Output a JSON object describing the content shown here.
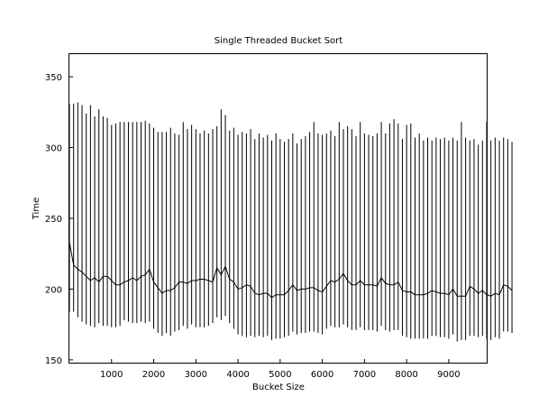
{
  "chart_data": {
    "type": "line",
    "title": "Single Threaded Bucket Sort",
    "xlabel": "Bucket Size",
    "ylabel": "Time",
    "xlim": [
      0,
      9900
    ],
    "ylim": [
      148,
      366
    ],
    "xticks": [
      1000,
      2000,
      3000,
      4000,
      5000,
      6000,
      7000,
      8000,
      9000
    ],
    "yticks": [
      150,
      200,
      250,
      300,
      350
    ],
    "grid": false,
    "legend": "none",
    "color": "#000000",
    "error_bars": true,
    "x_start": 0,
    "x_step": 100,
    "mean": [
      233,
      217,
      214,
      212,
      209,
      206,
      208,
      205,
      209,
      209,
      206,
      203,
      203,
      205,
      206,
      208,
      206,
      209,
      210,
      214,
      205,
      201,
      197,
      199,
      199,
      201,
      205,
      205,
      204,
      206,
      206,
      207,
      207,
      206,
      205,
      215,
      210,
      216,
      207,
      205,
      200,
      201,
      203,
      202,
      197,
      196,
      197,
      197,
      194,
      196,
      196,
      196,
      199,
      203,
      199,
      200,
      200,
      201,
      201,
      199,
      198,
      202,
      206,
      205,
      207,
      211,
      206,
      203,
      203,
      206,
      203,
      203,
      203,
      202,
      208,
      204,
      203,
      203,
      205,
      199,
      198,
      198,
      196,
      196,
      196,
      197,
      199,
      198,
      197,
      197,
      196,
      200,
      195,
      195,
      195,
      202,
      200,
      197,
      199,
      196,
      195,
      197,
      196,
      203,
      202,
      199
    ],
    "upper": [
      331,
      331,
      332,
      330,
      324,
      330,
      322,
      327,
      322,
      321,
      316,
      317,
      318,
      318,
      318,
      318,
      318,
      318,
      319,
      317,
      314,
      311,
      311,
      311,
      314,
      310,
      309,
      318,
      313,
      316,
      313,
      310,
      312,
      310,
      313,
      315,
      327,
      323,
      312,
      314,
      309,
      311,
      310,
      313,
      306,
      310,
      307,
      309,
      305,
      310,
      306,
      304,
      306,
      310,
      303,
      306,
      308,
      311,
      318,
      310,
      309,
      310,
      312,
      308,
      318,
      313,
      315,
      313,
      308,
      318,
      310,
      309,
      308,
      310,
      318,
      310,
      317,
      320,
      317,
      306,
      316,
      317,
      307,
      310,
      305,
      307,
      305,
      307,
      306,
      307,
      305,
      307,
      305,
      318,
      307,
      305,
      306,
      302,
      305,
      318,
      305,
      307,
      305,
      307,
      306,
      304
    ],
    "lower": [
      184,
      184,
      180,
      177,
      175,
      174,
      173,
      176,
      174,
      174,
      173,
      173,
      174,
      178,
      177,
      176,
      176,
      177,
      176,
      177,
      172,
      169,
      167,
      169,
      167,
      170,
      171,
      174,
      172,
      175,
      173,
      173,
      173,
      174,
      176,
      180,
      178,
      181,
      176,
      172,
      168,
      167,
      166,
      167,
      166,
      167,
      166,
      167,
      164,
      165,
      165,
      166,
      167,
      170,
      168,
      169,
      169,
      170,
      170,
      169,
      168,
      172,
      174,
      173,
      173,
      175,
      173,
      171,
      171,
      173,
      171,
      171,
      171,
      170,
      174,
      171,
      170,
      171,
      171,
      167,
      166,
      165,
      165,
      165,
      165,
      165,
      167,
      167,
      166,
      166,
      165,
      168,
      163,
      164,
      164,
      167,
      167,
      166,
      167,
      165,
      164,
      166,
      165,
      170,
      170,
      169
    ]
  }
}
